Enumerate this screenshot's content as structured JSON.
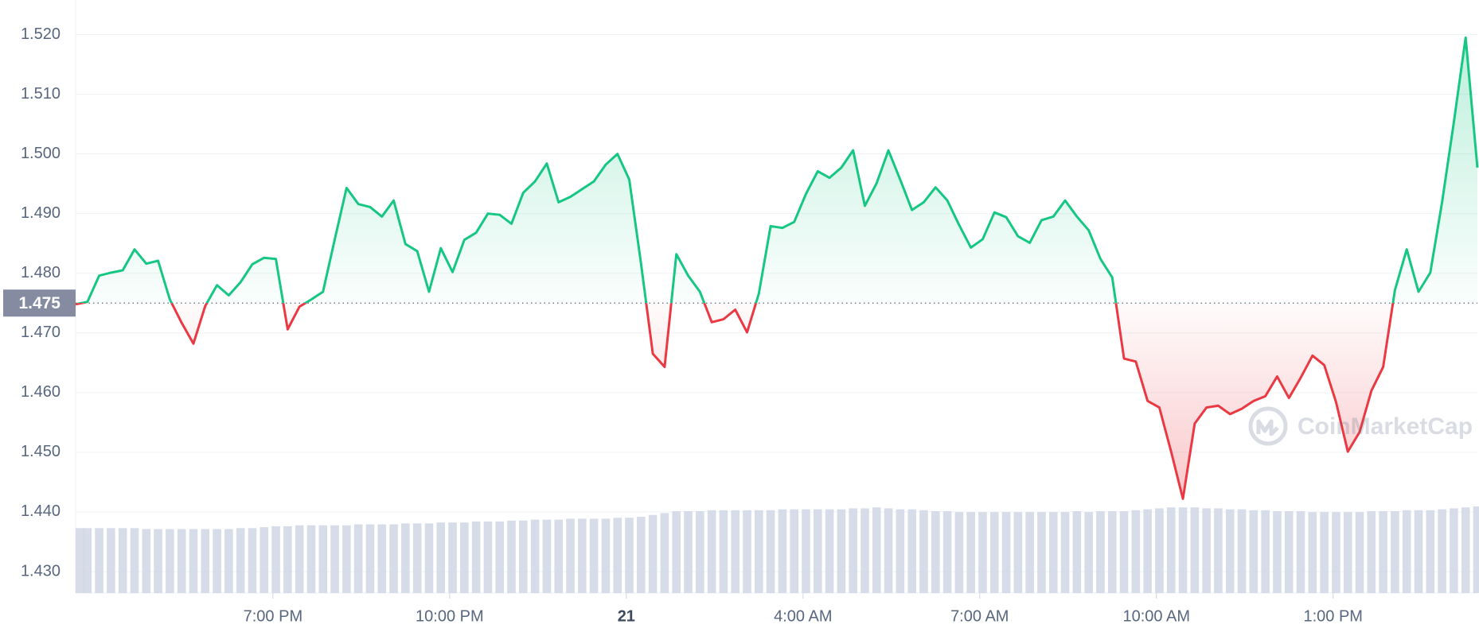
{
  "chart_data": {
    "type": "area",
    "watermark": "CoinMarketCap",
    "x": [
      15.65,
      15.85,
      16.05,
      16.25,
      16.45,
      16.65,
      16.85,
      17.05,
      17.25,
      17.45,
      17.65,
      17.85,
      18.05,
      18.25,
      18.45,
      18.65,
      18.85,
      19.05,
      19.25,
      19.45,
      19.65,
      19.85,
      20.05,
      20.25,
      20.45,
      20.65,
      20.85,
      21.05,
      21.25,
      21.45,
      21.65,
      21.85,
      22.05,
      22.25,
      22.45,
      22.65,
      22.85,
      23.05,
      23.25,
      23.45,
      23.65,
      23.85,
      24.05,
      24.25,
      24.45,
      24.65,
      24.85,
      25.05,
      25.25,
      25.45,
      25.65,
      25.85,
      26.05,
      26.25,
      26.45,
      26.65,
      26.85,
      27.05,
      27.25,
      27.45,
      27.65,
      27.85,
      28.05,
      28.25,
      28.45,
      28.65,
      28.85,
      29.05,
      29.25,
      29.45,
      29.65,
      29.85,
      30.05,
      30.25,
      30.45,
      30.65,
      30.85,
      31.05,
      31.25,
      31.45,
      31.65,
      31.85,
      32.05,
      32.25,
      32.45,
      32.65,
      32.85,
      33.05,
      33.25,
      33.45,
      33.65,
      33.85,
      34.05,
      34.25,
      34.45,
      34.65,
      34.85,
      35.05,
      35.25,
      35.45,
      35.65,
      35.85,
      36.05,
      36.25,
      36.45,
      36.65,
      36.85,
      37.05,
      37.25,
      37.45,
      37.65,
      37.85,
      38.05,
      38.25,
      38.45,
      38.65,
      38.85,
      39.05,
      39.25,
      39.45
    ],
    "values": [
      1.4748,
      1.4752,
      1.4796,
      1.4801,
      1.4805,
      1.484,
      1.4816,
      1.4821,
      1.4756,
      1.4717,
      1.4682,
      1.4745,
      1.478,
      1.4763,
      1.4785,
      1.4815,
      1.4826,
      1.4824,
      1.4706,
      1.4744,
      1.4756,
      1.4769,
      1.4857,
      1.4943,
      1.4916,
      1.4911,
      1.4895,
      1.4922,
      1.4849,
      1.4837,
      1.4769,
      1.4842,
      1.4802,
      1.4856,
      1.4868,
      1.49,
      1.4898,
      1.4883,
      1.4935,
      1.4954,
      1.4984,
      1.4919,
      1.4928,
      1.4941,
      1.4954,
      1.4982,
      1.5,
      1.4957,
      1.4816,
      1.4665,
      1.4643,
      1.4832,
      1.4796,
      1.4769,
      1.4718,
      1.4723,
      1.4739,
      1.4701,
      1.4766,
      1.4879,
      1.4876,
      1.4886,
      1.4933,
      1.4971,
      1.496,
      1.4977,
      1.5006,
      1.4913,
      1.4951,
      1.5006,
      1.4957,
      1.4906,
      1.4919,
      1.4944,
      1.4922,
      1.4881,
      1.4843,
      1.4857,
      1.4902,
      1.4894,
      1.4862,
      1.4851,
      1.4889,
      1.4895,
      1.4922,
      1.4895,
      1.4872,
      1.4824,
      1.4793,
      1.4657,
      1.4652,
      1.4586,
      1.4575,
      1.4501,
      1.4422,
      1.4548,
      1.4575,
      1.4578,
      1.4564,
      1.4573,
      1.4586,
      1.4594,
      1.4627,
      1.4591,
      1.4625,
      1.4662,
      1.4646,
      1.4584,
      1.4501,
      1.4534,
      1.4603,
      1.4643,
      1.4772,
      1.484,
      1.4769,
      1.4801,
      1.4919,
      1.5053,
      1.5195,
      1.4977
    ],
    "colors": {
      "up": "#16c784",
      "down": "#ea3943"
    },
    "baseline": {
      "value": 1.475,
      "label": "1.475"
    },
    "volume": {
      "color": "#cfd6e4",
      "axis": "y2",
      "values": [
        69,
        69,
        69,
        69,
        69,
        69,
        68,
        68,
        68,
        68,
        68,
        68,
        68,
        68,
        69,
        69,
        70,
        71,
        71,
        72,
        72,
        72,
        72,
        72,
        73,
        73,
        73,
        73,
        74,
        74,
        74,
        75,
        75,
        75,
        76,
        76,
        76,
        77,
        77,
        78,
        78,
        78,
        79,
        79,
        79,
        79,
        80,
        80,
        81,
        83,
        85,
        87,
        87,
        87,
        88,
        88,
        88,
        88,
        88,
        88,
        89,
        89,
        89,
        89,
        89,
        89,
        90,
        90,
        91,
        90,
        89,
        89,
        88,
        87,
        87,
        86,
        86,
        86,
        86,
        86,
        86,
        86,
        86,
        86,
        86,
        87,
        86,
        87,
        87,
        87,
        88,
        89,
        90,
        91,
        91,
        91,
        90,
        90,
        89,
        89,
        88,
        88,
        87,
        87,
        87,
        86,
        86,
        86,
        86,
        86,
        87,
        87,
        87,
        88,
        88,
        88,
        89,
        90,
        91,
        92
      ]
    },
    "xlim": [
      15.65,
      39.45
    ],
    "ylim": [
      1.4264,
      1.5258
    ],
    "y2lim": [
      0,
      630
    ],
    "xticks": [
      {
        "value": 19,
        "label": "7:00 PM"
      },
      {
        "value": 22,
        "label": "10:00 PM"
      },
      {
        "value": 25,
        "label": "21"
      },
      {
        "value": 28,
        "label": "4:00 AM"
      },
      {
        "value": 31,
        "label": "7:00 AM"
      },
      {
        "value": 34,
        "label": "10:00 AM"
      },
      {
        "value": 37,
        "label": "1:00 PM"
      }
    ],
    "yticks": [
      {
        "value": 1.43,
        "label": "1.430"
      },
      {
        "value": 1.44,
        "label": "1.440"
      },
      {
        "value": 1.45,
        "label": "1.450"
      },
      {
        "value": 1.46,
        "label": "1.460"
      },
      {
        "value": 1.47,
        "label": "1.470"
      },
      {
        "value": 1.48,
        "label": "1.480"
      },
      {
        "value": 1.49,
        "label": "1.490"
      },
      {
        "value": 1.5,
        "label": "1.500"
      },
      {
        "value": 1.51,
        "label": "1.510"
      },
      {
        "value": 1.52,
        "label": "1.520"
      }
    ],
    "grid": true
  }
}
